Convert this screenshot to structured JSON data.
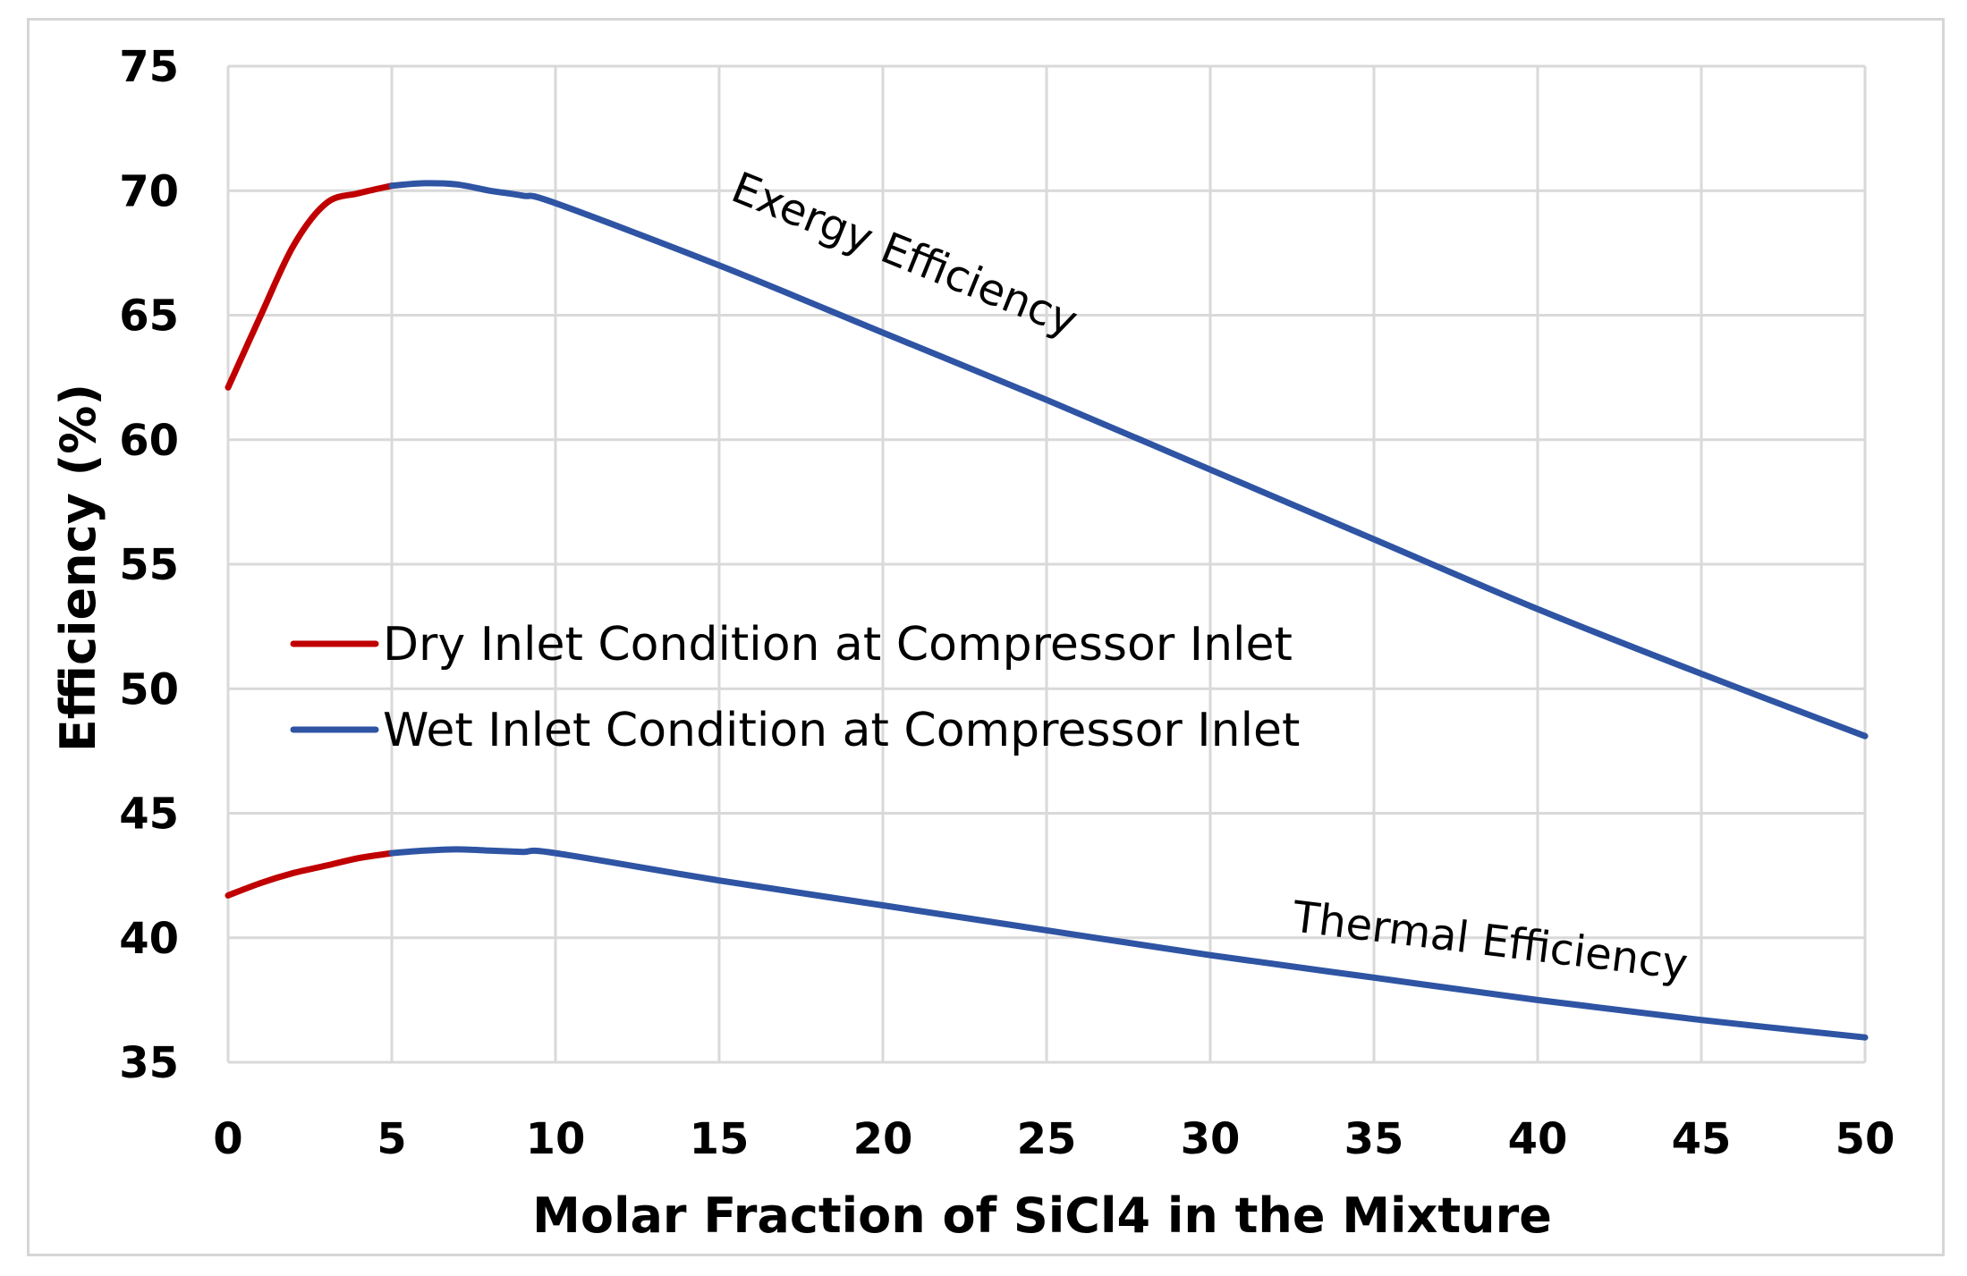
{
  "chart_data": {
    "type": "line",
    "title": "",
    "xlabel": "Molar Fraction of SiCl4 in the Mixture",
    "ylabel": "Efficiency (%)",
    "xlim": [
      0,
      50
    ],
    "ylim": [
      35,
      75
    ],
    "x_ticks": [
      "0",
      "5",
      "10",
      "15",
      "20",
      "25",
      "30",
      "35",
      "40",
      "45",
      "50"
    ],
    "y_ticks": [
      "35",
      "40",
      "45",
      "50",
      "55",
      "60",
      "65",
      "70",
      "75"
    ],
    "grid": true,
    "legend_position": "center-left",
    "series": [
      {
        "name": "Dry Inlet Condition at Compressor Inlet",
        "color": "#c00000",
        "curves": [
          {
            "label": "Exergy Efficiency",
            "x": [
              0,
              1,
              2,
              3,
              4,
              5
            ],
            "y": [
              62.1,
              65.0,
              67.8,
              69.5,
              69.9,
              70.2
            ]
          },
          {
            "label": "Thermal Efficiency",
            "x": [
              0,
              1,
              2,
              3,
              4,
              5
            ],
            "y": [
              41.7,
              42.2,
              42.6,
              42.9,
              43.2,
              43.4
            ]
          }
        ]
      },
      {
        "name": "Wet Inlet Condition at Compressor Inlet",
        "color": "#2e54a3",
        "curves": [
          {
            "label": "Exergy Efficiency",
            "x": [
              5,
              6,
              7,
              8,
              9,
              10,
              15,
              20,
              25,
              30,
              35,
              40,
              45,
              50
            ],
            "y": [
              70.2,
              70.3,
              70.25,
              70.0,
              69.8,
              69.5,
              67.0,
              64.3,
              61.6,
              58.8,
              56.0,
              53.2,
              50.6,
              48.1
            ]
          },
          {
            "label": "Thermal Efficiency",
            "x": [
              5,
              6,
              7,
              8,
              9,
              10,
              15,
              20,
              25,
              30,
              35,
              40,
              45,
              50
            ],
            "y": [
              43.4,
              43.5,
              43.55,
              43.5,
              43.45,
              43.4,
              42.3,
              41.3,
              40.3,
              39.3,
              38.4,
              37.5,
              36.7,
              36.0
            ]
          }
        ]
      }
    ],
    "annotations": [
      {
        "text": "Exergy Efficiency",
        "x": 20.5,
        "y": 66.9,
        "angle_deg": 22
      },
      {
        "text": "Thermal Efficiency",
        "x": 38.5,
        "y": 39.3,
        "angle_deg": 7
      }
    ]
  }
}
